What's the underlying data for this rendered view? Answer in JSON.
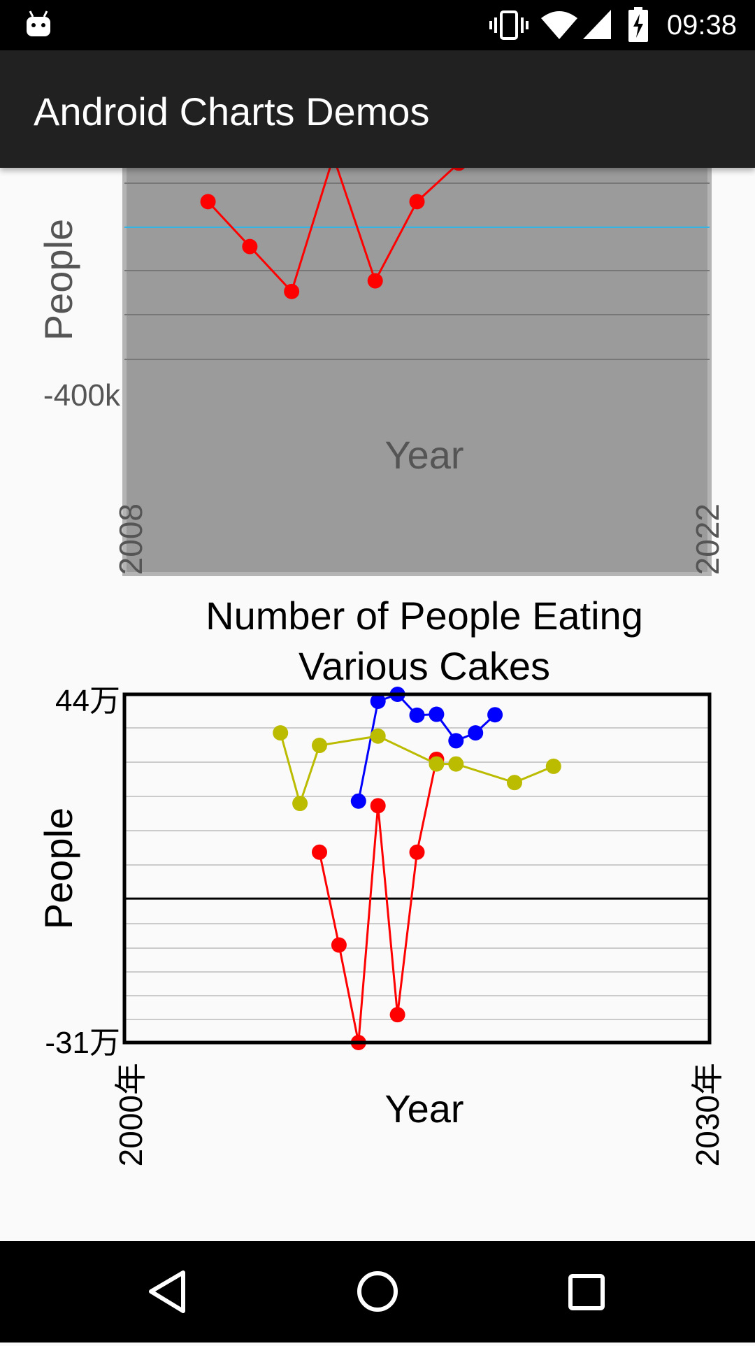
{
  "status_bar": {
    "time": "09:38",
    "icons": [
      "android-notification-icon",
      "vibrate-icon",
      "wifi-icon",
      "cellular-signal-icon",
      "battery-charging-icon"
    ]
  },
  "app_bar": {
    "title": "Android Charts Demos"
  },
  "chart_data": [
    {
      "type": "line",
      "title": "",
      "xlabel": "Year",
      "ylabel": "People",
      "x_tick_labels": [
        "2008",
        "2022"
      ],
      "y_tick_labels": [
        "-400k"
      ],
      "xlim": [
        2008,
        2022
      ],
      "background": "#9b9b9b",
      "series": [
        {
          "color": "#ff0000",
          "points": [
            [
              2010,
              0.94
            ],
            [
              2011,
              0.73
            ],
            [
              2012,
              0.52
            ],
            [
              2013,
              1.15
            ],
            [
              2014,
              0.57
            ],
            [
              2015,
              0.94
            ],
            [
              2016,
              1.12
            ]
          ]
        }
      ]
    },
    {
      "type": "line",
      "title": "Number of People Eating Various Cakes",
      "xlabel": "Year",
      "ylabel": "People",
      "x_tick_labels": [
        "2000年",
        "2030年"
      ],
      "y_tick_labels": [
        "44万",
        "-31万"
      ],
      "xlim": [
        2000,
        2030
      ],
      "ylim": [
        -310000,
        440000
      ],
      "grid": true,
      "series": [
        {
          "color": "#ff0000",
          "points": [
            [
              2010,
              100000
            ],
            [
              2011,
              -100000
            ],
            [
              2012,
              -310000
            ],
            [
              2013,
              200000
            ],
            [
              2014,
              -250000
            ],
            [
              2015,
              100000
            ],
            [
              2016,
              300000
            ]
          ]
        },
        {
          "color": "#0000ff",
          "points": [
            [
              2012,
              210000
            ],
            [
              2013,
              425000
            ],
            [
              2014,
              440000
            ],
            [
              2015,
              395000
            ],
            [
              2016,
              397000
            ],
            [
              2017,
              340000
            ],
            [
              2018,
              357000
            ],
            [
              2019,
              396000
            ]
          ]
        },
        {
          "color": "#bbbb00",
          "points": [
            [
              2008,
              357000
            ],
            [
              2009,
              205000
            ],
            [
              2010,
              330000
            ],
            [
              2013,
              350000
            ],
            [
              2016,
              290000
            ],
            [
              2017,
              290000
            ],
            [
              2020,
              250000
            ],
            [
              2022,
              285000
            ]
          ]
        }
      ]
    }
  ]
}
